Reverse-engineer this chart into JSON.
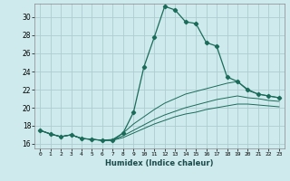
{
  "xlabel": "Humidex (Indice chaleur)",
  "bg_color": "#ceeaec",
  "grid_color": "#aecdd0",
  "line_color": "#1a6b5a",
  "xlim": [
    -0.5,
    23.5
  ],
  "ylim": [
    15.5,
    31.5
  ],
  "yticks": [
    16,
    18,
    20,
    22,
    24,
    26,
    28,
    30
  ],
  "xticks": [
    0,
    1,
    2,
    3,
    4,
    5,
    6,
    7,
    8,
    9,
    10,
    11,
    12,
    13,
    14,
    15,
    16,
    17,
    18,
    19,
    20,
    21,
    22,
    23
  ],
  "series": [
    [
      17.5,
      17.1,
      16.8,
      17.0,
      16.6,
      16.5,
      16.4,
      16.4,
      17.2,
      19.5,
      24.5,
      27.8,
      31.2,
      30.8,
      29.5,
      29.3,
      27.2,
      26.8,
      23.4,
      22.9,
      22.0,
      21.5,
      21.3,
      21.1
    ],
    [
      17.5,
      17.1,
      16.8,
      17.0,
      16.6,
      16.5,
      16.4,
      16.5,
      17.2,
      18.2,
      19.0,
      19.8,
      20.5,
      21.0,
      21.5,
      21.8,
      22.1,
      22.4,
      22.7,
      22.9,
      21.9,
      21.5,
      21.3,
      21.1
    ],
    [
      17.5,
      17.1,
      16.8,
      17.0,
      16.6,
      16.5,
      16.4,
      16.4,
      16.9,
      17.5,
      18.1,
      18.7,
      19.2,
      19.6,
      20.0,
      20.3,
      20.6,
      20.9,
      21.1,
      21.3,
      21.1,
      21.0,
      20.8,
      20.7
    ],
    [
      17.5,
      17.1,
      16.8,
      17.0,
      16.6,
      16.5,
      16.4,
      16.4,
      16.7,
      17.2,
      17.7,
      18.2,
      18.6,
      19.0,
      19.3,
      19.5,
      19.8,
      20.0,
      20.2,
      20.4,
      20.4,
      20.3,
      20.2,
      20.1
    ]
  ]
}
